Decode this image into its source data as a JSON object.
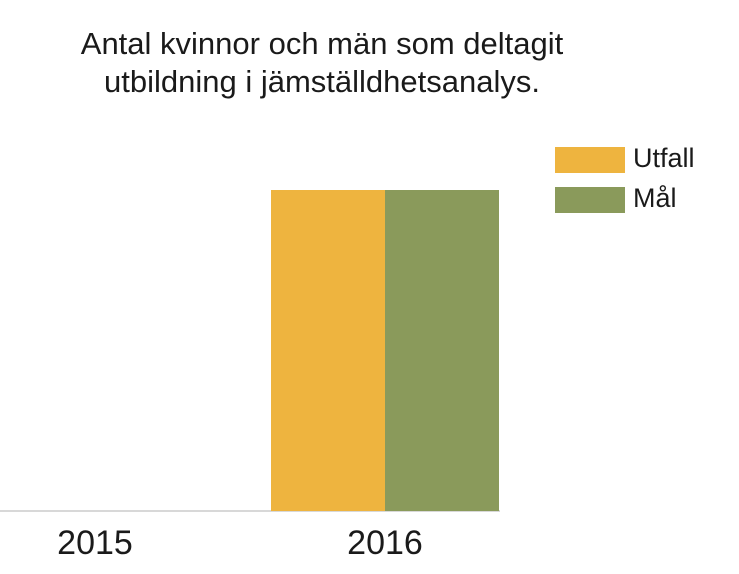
{
  "chart_data": {
    "type": "bar",
    "title": "Antal kvinnor och män som deltagit",
    "subtitle": "utbildning i jämställdhetsanalys.",
    "categories": [
      "2015",
      "2016"
    ],
    "series": [
      {
        "name": "Utfall",
        "color": "#eeb43f",
        "values": [
          null,
          100
        ]
      },
      {
        "name": "Mål",
        "color": "#8a9a5b",
        "values": [
          null,
          100
        ]
      }
    ]
  }
}
